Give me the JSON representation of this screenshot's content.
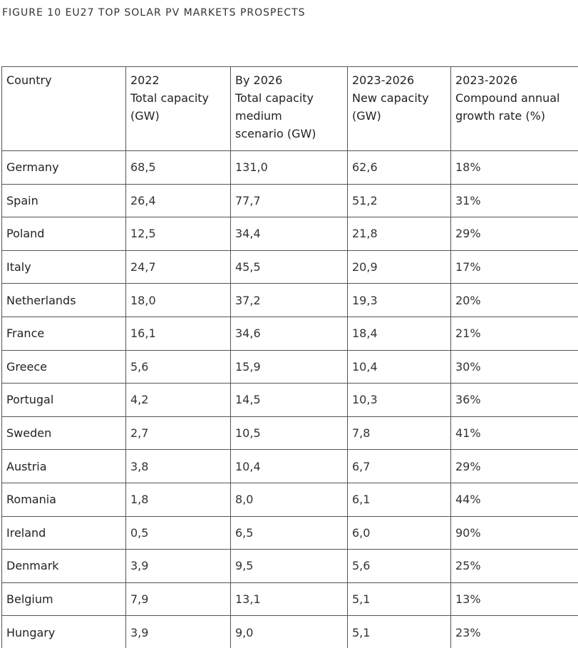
{
  "header": {
    "title": "FIGURE 10 EU27 TOP SOLAR PV MARKETS PROSPECTS"
  },
  "table": {
    "columns": [
      [
        "Country"
      ],
      [
        "2022",
        "Total capacity",
        "(GW)"
      ],
      [
        "By 2026",
        "Total capacity",
        "medium",
        "scenario (GW)"
      ],
      [
        "2023-2026",
        "New capacity",
        "(GW)"
      ],
      [
        "2023-2026",
        "Compound annual",
        "growth rate (%)"
      ]
    ],
    "rows": [
      [
        "Germany",
        "68,5",
        "131,0",
        "62,6",
        "18%"
      ],
      [
        "Spain",
        "26,4",
        "77,7",
        "51,2",
        "31%"
      ],
      [
        "Poland",
        "12,5",
        "34,4",
        "21,8",
        "29%"
      ],
      [
        "Italy",
        "24,7",
        "45,5",
        "20,9",
        "17%"
      ],
      [
        "Netherlands",
        "18,0",
        "37,2",
        "19,3",
        "20%"
      ],
      [
        "France",
        "16,1",
        "34,6",
        "18,4",
        "21%"
      ],
      [
        "Greece",
        "5,6",
        "15,9",
        "10,4",
        "30%"
      ],
      [
        "Portugal",
        "4,2",
        "14,5",
        "10,3",
        "36%"
      ],
      [
        "Sweden",
        "2,7",
        "10,5",
        "7,8",
        "41%"
      ],
      [
        "Austria",
        "3,8",
        "10,4",
        "6,7",
        "29%"
      ],
      [
        "Romania",
        "1,8",
        "8,0",
        "6,1",
        "44%"
      ],
      [
        "Ireland",
        "0,5",
        "6,5",
        "6,0",
        "90%"
      ],
      [
        "Denmark",
        "3,9",
        "9,5",
        "5,6",
        "25%"
      ],
      [
        "Belgium",
        "7,9",
        "13,1",
        "5,1",
        "13%"
      ],
      [
        "Hungary",
        "3,9",
        "9,0",
        "5,1",
        "23%"
      ]
    ]
  }
}
